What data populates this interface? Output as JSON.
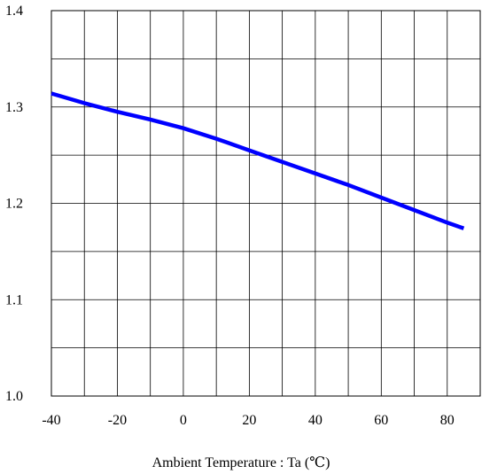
{
  "chart_data": {
    "type": "line",
    "title": "",
    "xlabel": "Ambient Temperature : Ta (℃)",
    "ylabel": "",
    "xlim": [
      -40,
      90
    ],
    "ylim": [
      1.0,
      1.4
    ],
    "x_ticks": [
      -40,
      -20,
      0,
      20,
      40,
      60,
      80
    ],
    "x_tick_labels": [
      "-40",
      "-20",
      "0",
      "20",
      "40",
      "60",
      "80"
    ],
    "y_ticks": [
      1.0,
      1.1,
      1.2,
      1.3,
      1.4
    ],
    "y_tick_labels": [
      "1.0",
      "1.1",
      "1.2",
      "1.3",
      "1.4"
    ],
    "x_minor_step": 10,
    "y_minor_step": 0.05,
    "grid": true,
    "series": [
      {
        "color": "#0000ff",
        "x": [
          -40,
          -30,
          -20,
          -10,
          0,
          10,
          20,
          30,
          40,
          50,
          60,
          70,
          80,
          85
        ],
        "y": [
          1.314,
          1.304,
          1.295,
          1.287,
          1.278,
          1.267,
          1.255,
          1.243,
          1.231,
          1.219,
          1.206,
          1.193,
          1.18,
          1.174
        ]
      }
    ]
  }
}
